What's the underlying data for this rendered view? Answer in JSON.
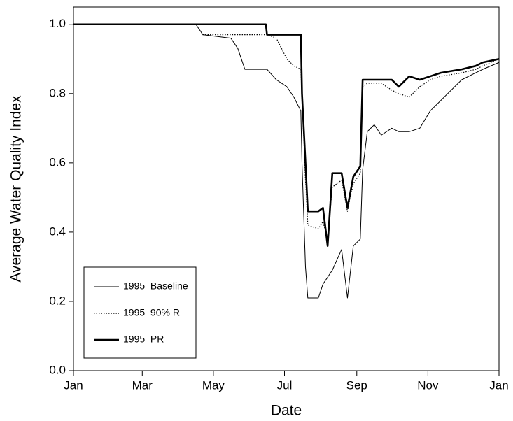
{
  "chart_data": {
    "type": "line",
    "xlabel": "Date",
    "ylabel": "Average Water Quality Index",
    "x": [
      0,
      105,
      111,
      135,
      141,
      147,
      165,
      166,
      174,
      183,
      189,
      195,
      196,
      199,
      201,
      210,
      214,
      218,
      222,
      230,
      235,
      240,
      246,
      248,
      252,
      258,
      264,
      273,
      279,
      288,
      297,
      306,
      315,
      333,
      345,
      351,
      365
    ],
    "xlim": [
      0,
      365
    ],
    "xticks": [
      {
        "value": 0,
        "label": "Jan"
      },
      {
        "value": 59,
        "label": "Mar"
      },
      {
        "value": 120,
        "label": "May"
      },
      {
        "value": 181,
        "label": "Jul"
      },
      {
        "value": 243,
        "label": "Sep"
      },
      {
        "value": 304,
        "label": "Nov"
      },
      {
        "value": 365,
        "label": "Jan"
      }
    ],
    "ylim": [
      0,
      1.05
    ],
    "yticks": [
      {
        "value": 0,
        "label": "0.0"
      },
      0.2,
      0.4,
      0.6,
      0.8,
      {
        "value": 1,
        "label": "1.0"
      }
    ],
    "legend": "lower left",
    "series": [
      {
        "name": "1995  Baseline",
        "color": "#000000",
        "style": "solid",
        "width": 1,
        "values": [
          1,
          1,
          0.97,
          0.96,
          0.93,
          0.87,
          0.87,
          0.87,
          0.84,
          0.82,
          0.79,
          0.75,
          0.6,
          0.3,
          0.21,
          0.21,
          0.25,
          0.27,
          0.29,
          0.35,
          0.21,
          0.36,
          0.38,
          0.58,
          0.69,
          0.71,
          0.68,
          0.7,
          0.69,
          0.69,
          0.7,
          0.75,
          0.78,
          0.84,
          0.86,
          0.87,
          0.89
        ]
      },
      {
        "name": "1995  90% R",
        "color": "#000000",
        "style": "dotted",
        "width": 1.2,
        "values": [
          1,
          1,
          0.97,
          0.97,
          0.97,
          0.97,
          0.97,
          0.97,
          0.96,
          0.9,
          0.88,
          0.87,
          0.8,
          0.55,
          0.42,
          0.41,
          0.43,
          0.38,
          0.53,
          0.55,
          0.46,
          0.54,
          0.57,
          0.82,
          0.83,
          0.83,
          0.83,
          0.81,
          0.8,
          0.79,
          0.82,
          0.84,
          0.85,
          0.86,
          0.87,
          0.88,
          0.9
        ]
      },
      {
        "name": "1995  PR",
        "color": "#000000",
        "style": "solid",
        "width": 2.6,
        "values": [
          1,
          1,
          1,
          1,
          1,
          1,
          1,
          0.97,
          0.97,
          0.97,
          0.97,
          0.97,
          0.8,
          0.6,
          0.46,
          0.46,
          0.47,
          0.36,
          0.57,
          0.57,
          0.47,
          0.56,
          0.59,
          0.84,
          0.84,
          0.84,
          0.84,
          0.84,
          0.82,
          0.85,
          0.84,
          0.85,
          0.86,
          0.87,
          0.88,
          0.89,
          0.9
        ]
      }
    ]
  }
}
